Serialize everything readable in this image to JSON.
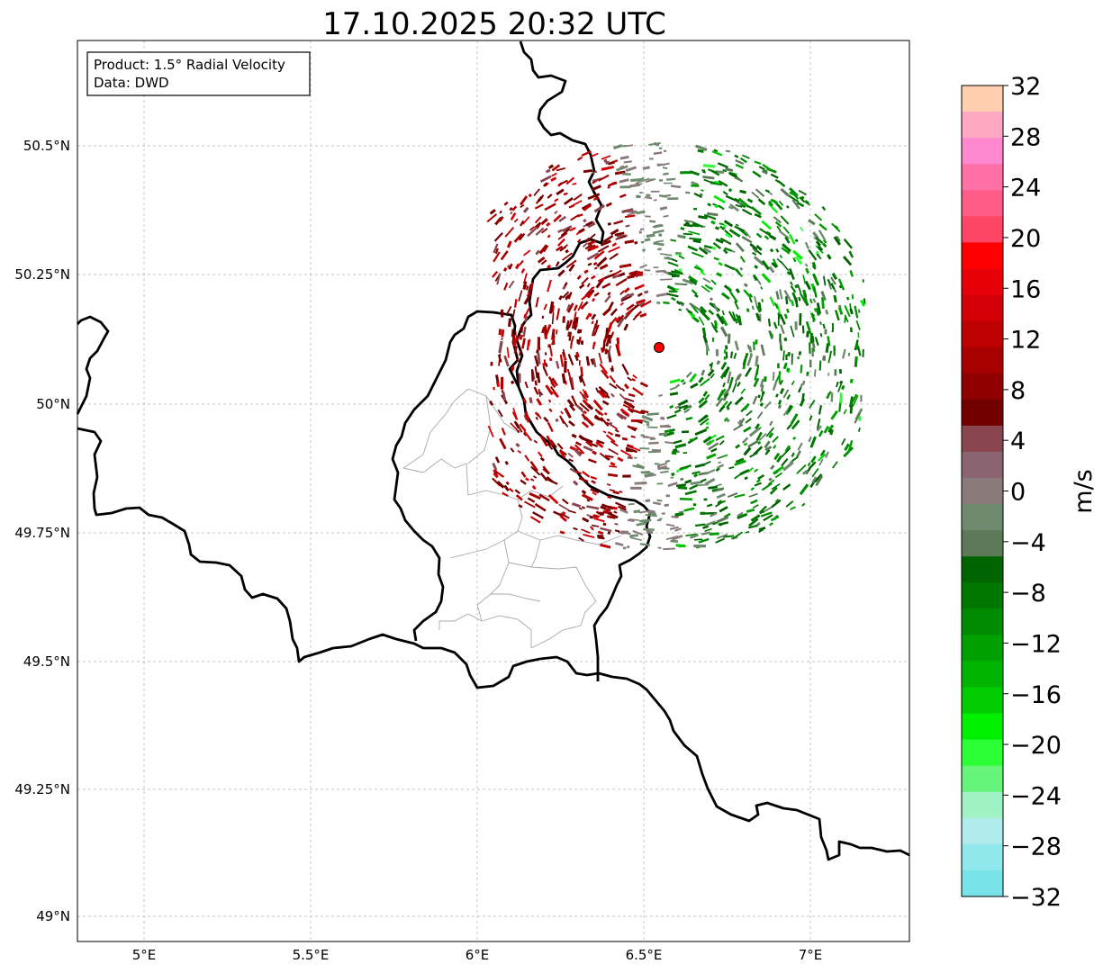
{
  "title": "17.10.2025 20:32 UTC",
  "info_box": {
    "product": "Product: 1.5° Radial Velocity",
    "data": "Data: DWD"
  },
  "axes": {
    "lon_ticks": [
      "5°E",
      "5.5°E",
      "6°E",
      "6.5°E",
      "7°E"
    ],
    "lat_ticks": [
      "50.5°N",
      "50.25°N",
      "50°N",
      "49.75°N",
      "49.5°N",
      "49.25°N",
      "49°N"
    ]
  },
  "map": {
    "lon_range": [
      4.8,
      7.3
    ],
    "lat_range": [
      48.95,
      50.7
    ],
    "radar_site": {
      "lon": 6.55,
      "lat": 50.11,
      "color": "#ff0000"
    },
    "gridlines": true
  },
  "colorbar": {
    "label": "m/s",
    "min": -32,
    "max": 32,
    "tick_labels": [
      "32",
      "28",
      "24",
      "20",
      "16",
      "12",
      "8",
      "4",
      "0",
      "−4",
      "−8",
      "−12",
      "−16",
      "−20",
      "−24",
      "−28",
      "−32"
    ],
    "colors_top_to_bottom": [
      "#ffcfb0",
      "#ffa8c4",
      "#ff88cf",
      "#ff70a6",
      "#ff5c88",
      "#ff4565",
      "#ff0000",
      "#e80008",
      "#d20006",
      "#be0000",
      "#a80000",
      "#900000",
      "#730000",
      "#8a4650",
      "#8a6470",
      "#8a7b7a",
      "#6e8a6e",
      "#5c7a58",
      "#006400",
      "#007800",
      "#008c00",
      "#00a000",
      "#00b400",
      "#00cc00",
      "#00f000",
      "#2dff36",
      "#66f57a",
      "#9ef2c4",
      "#b0ecec",
      "#90e8ec",
      "#78e2e8"
    ]
  }
}
